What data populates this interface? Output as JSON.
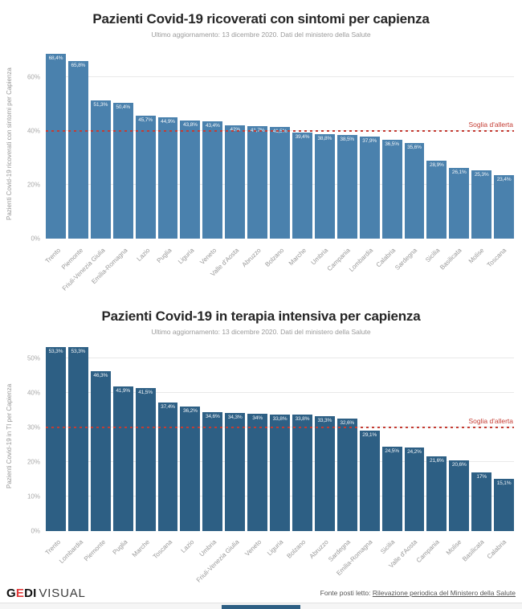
{
  "chart_data": [
    {
      "type": "bar",
      "title": "Pazienti Covid-19 ricoverati con sintomi per capienza",
      "subtitle": "Ultimo aggiornamento: 13 dicembre 2020. Dati del ministero della Salute",
      "ylabel": "Pazienti Covid-19 ricoverati con sintomi per Capienza",
      "xlabel": "",
      "ylim": [
        0,
        70
      ],
      "yticks": [
        0,
        20,
        40,
        60
      ],
      "ytick_labels": [
        "0%",
        "20%",
        "40%",
        "60%"
      ],
      "grid": true,
      "bar_color": "#4a81ad",
      "threshold": {
        "value": 40,
        "label": "Soglia d'allerta",
        "color": "#c43c33"
      },
      "categories": [
        "Trento",
        "Piemonte",
        "Friuli-Venezia Giulia",
        "Emilia-Romagna",
        "Lazio",
        "Puglia",
        "Liguria",
        "Veneto",
        "Valle d'Aosta",
        "Abruzzo",
        "Bolzano",
        "Marche",
        "Umbria",
        "Campania",
        "Lombardia",
        "Calabria",
        "Sardegna",
        "Sicilia",
        "Basilicata",
        "Molise",
        "Toscana"
      ],
      "values": [
        68.4,
        65.8,
        51.3,
        50.4,
        45.7,
        44.9,
        43.8,
        43.4,
        42,
        41.7,
        41.5,
        39.4,
        38.8,
        38.5,
        37.9,
        36.5,
        35.6,
        28.9,
        26.1,
        25.3,
        23.4
      ],
      "value_labels": [
        "68,4%",
        "65,8%",
        "51,3%",
        "50,4%",
        "45,7%",
        "44,9%",
        "43,8%",
        "43,4%",
        "42%",
        "41,7%",
        "41,5%",
        "39,4%",
        "38,8%",
        "38,5%",
        "37,9%",
        "36,5%",
        "35,6%",
        "28,9%",
        "26,1%",
        "25,3%",
        "23,4%"
      ]
    },
    {
      "type": "bar",
      "title": "Pazienti Covid-19 in terapia intensiva per capienza",
      "subtitle": "Ultimo aggiornamento: 13 dicembre 2020. Dati del ministero della Salute",
      "ylabel": "Pazienti Covid-19 in TI per Capienza",
      "xlabel": "",
      "ylim": [
        0,
        55
      ],
      "yticks": [
        0,
        10,
        20,
        30,
        40,
        50
      ],
      "ytick_labels": [
        "0%",
        "10%",
        "20%",
        "30%",
        "40%",
        "50%"
      ],
      "grid": true,
      "bar_color": "#2d5f84",
      "threshold": {
        "value": 30,
        "label": "Soglia d'allerta",
        "color": "#c43c33"
      },
      "categories": [
        "Trento",
        "Lombardia",
        "Piemonte",
        "Puglia",
        "Marche",
        "Toscana",
        "Lazio",
        "Umbria",
        "Friuli-Venezia Giulia",
        "Veneto",
        "Liguria",
        "Bolzano",
        "Abruzzo",
        "Sardegna",
        "Emilia-Romagna",
        "Sicilia",
        "Valle d'Aosta",
        "Campania",
        "Molise",
        "Basilicata",
        "Calabria"
      ],
      "values": [
        53.3,
        53.3,
        46.3,
        41.9,
        41.5,
        37.4,
        36.2,
        34.6,
        34.3,
        34,
        33.8,
        33.8,
        33.3,
        32.6,
        29.1,
        24.5,
        24.2,
        21.6,
        20.6,
        17,
        15.1
      ],
      "value_labels": [
        "53,3%",
        "53,3%",
        "46,3%",
        "41,9%",
        "41,5%",
        "37,4%",
        "36,2%",
        "34,6%",
        "34,3%",
        "34%",
        "33,8%",
        "33,8%",
        "33,3%",
        "32,6%",
        "29,1%",
        "24,5%",
        "24,2%",
        "21,6%",
        "20,6%",
        "17%",
        "15,1%"
      ]
    }
  ],
  "footer": {
    "logo": {
      "g": "G",
      "e": "E",
      "di": "DI",
      "visual": "VISUAL"
    },
    "source_prefix": "Fonte posti letto: ",
    "source_link_text": "Rilevazione periodica del Ministero della Salute"
  }
}
